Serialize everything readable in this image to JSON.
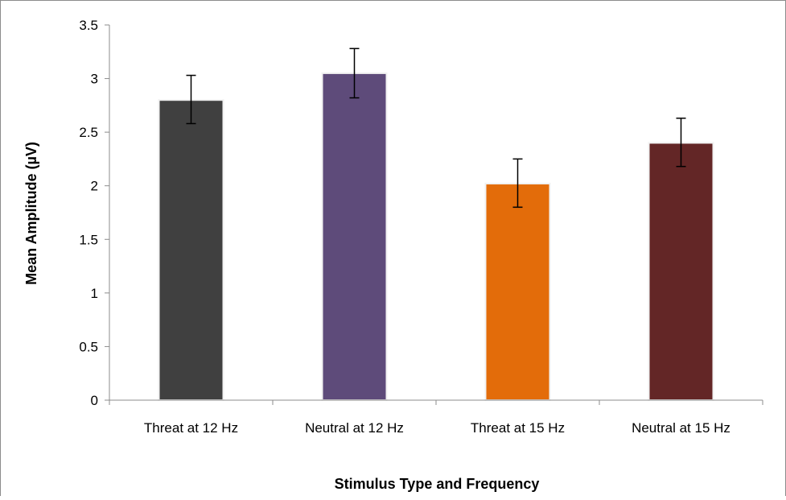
{
  "chart_data": {
    "type": "bar",
    "title": "",
    "xlabel": "Stimulus Type and Frequency",
    "ylabel": "Mean Amplitude (µV)",
    "ylim": [
      0,
      3.5
    ],
    "yticks": [
      "0",
      "0.5",
      "1",
      "1.5",
      "2",
      "2.5",
      "3",
      "3.5"
    ],
    "grid": false,
    "legend": "none",
    "categories": [
      "Threat at 12 Hz",
      "Neutral at 12 Hz",
      "Threat at 15 Hz",
      "Neutral at 15 Hz"
    ],
    "values": [
      2.8,
      3.05,
      2.02,
      2.4
    ],
    "error_low": [
      2.58,
      2.82,
      1.8,
      2.18
    ],
    "error_high": [
      3.03,
      3.28,
      2.25,
      2.63
    ],
    "colors": [
      "#404040",
      "#5e4b7a",
      "#e36c0a",
      "#632626"
    ]
  }
}
